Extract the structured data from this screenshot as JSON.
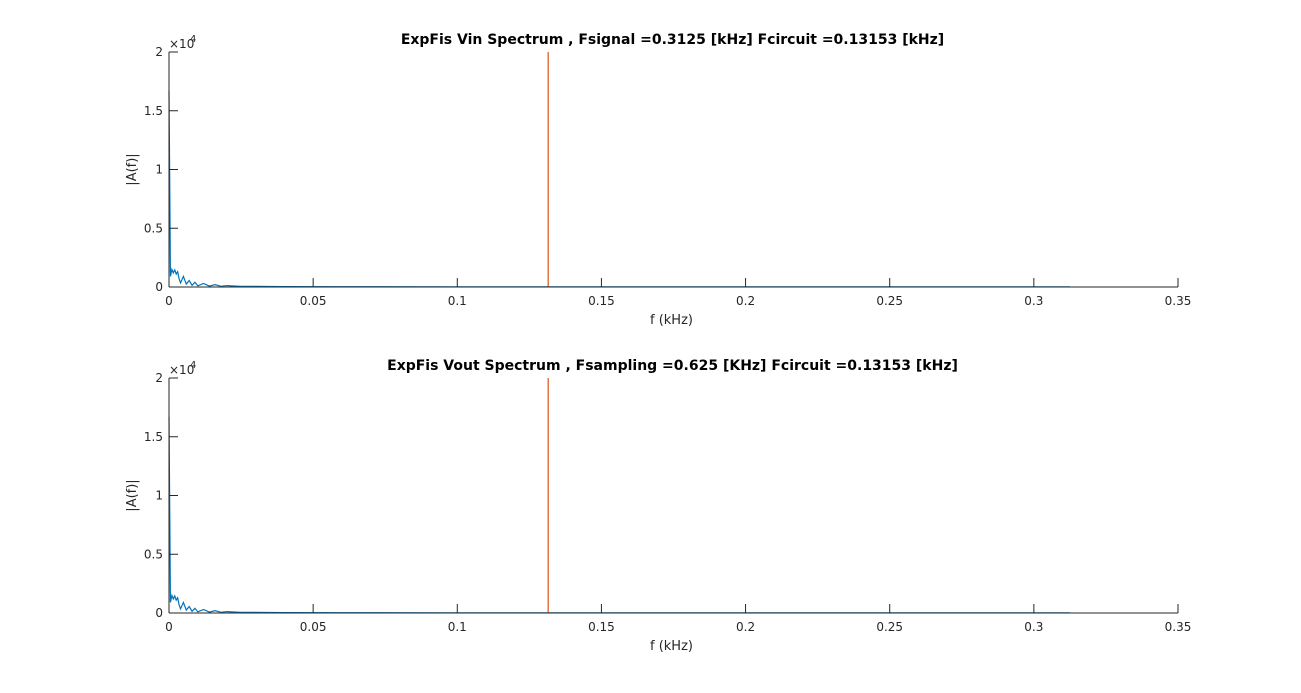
{
  "chart_data": [
    {
      "type": "line",
      "title": "ExpFis Vin Spectrum , Fsignal =0.3125 [kHz] Fcircuit =0.13153 [kHz]",
      "xlabel": "f (kHz)",
      "ylabel": "|A(f)|",
      "xlim": [
        0,
        0.35
      ],
      "ylim": [
        0,
        20000
      ],
      "x_ticks": [
        0,
        0.05,
        0.1,
        0.15,
        0.2,
        0.25,
        0.3,
        0.35
      ],
      "x_tick_labels": [
        "0",
        "0.05",
        "0.1",
        "0.15",
        "0.2",
        "0.25",
        "0.3",
        "0.35"
      ],
      "y_ticks": [
        0,
        5000,
        10000,
        15000,
        20000
      ],
      "y_tick_labels": [
        "0",
        "0.5",
        "1",
        "1.5",
        "2"
      ],
      "y_exponent_label": "×10",
      "y_exponent_power": "4",
      "grid": false,
      "series": [
        {
          "color": "#0072BD",
          "x": [
            0,
            0.0005,
            0.001,
            0.0015,
            0.002,
            0.0025,
            0.003,
            0.0035,
            0.004,
            0.005,
            0.006,
            0.007,
            0.008,
            0.009,
            0.01,
            0.012,
            0.014,
            0.016,
            0.018,
            0.02,
            0.025,
            0.03,
            0.04,
            0.06,
            0.1,
            0.15,
            0.2,
            0.25,
            0.3,
            0.3125
          ],
          "y": [
            16700,
            900,
            1500,
            1200,
            1450,
            1100,
            1300,
            700,
            350,
            900,
            250,
            550,
            150,
            400,
            100,
            300,
            80,
            200,
            60,
            120,
            50,
            60,
            30,
            20,
            15,
            10,
            10,
            10,
            10,
            10
          ]
        },
        {
          "color": "#D95319",
          "x": [
            0.13153,
            0.13153
          ],
          "y": [
            0,
            20000
          ]
        }
      ]
    },
    {
      "type": "line",
      "title": "ExpFis Vout Spectrum , Fsampling =0.625 [KHz]  Fcircuit =0.13153 [kHz]",
      "xlabel": "f (kHz)",
      "ylabel": "|A(f)|",
      "xlim": [
        0,
        0.35
      ],
      "ylim": [
        0,
        20000
      ],
      "x_ticks": [
        0,
        0.05,
        0.1,
        0.15,
        0.2,
        0.25,
        0.3,
        0.35
      ],
      "x_tick_labels": [
        "0",
        "0.05",
        "0.1",
        "0.15",
        "0.2",
        "0.25",
        "0.3",
        "0.35"
      ],
      "y_ticks": [
        0,
        5000,
        10000,
        15000,
        20000
      ],
      "y_tick_labels": [
        "0",
        "0.5",
        "1",
        "1.5",
        "2"
      ],
      "y_exponent_label": "×10",
      "y_exponent_power": "4",
      "grid": false,
      "series": [
        {
          "color": "#0072BD",
          "x": [
            0,
            0.0005,
            0.001,
            0.0015,
            0.002,
            0.0025,
            0.003,
            0.0035,
            0.004,
            0.005,
            0.006,
            0.007,
            0.008,
            0.009,
            0.01,
            0.012,
            0.014,
            0.016,
            0.018,
            0.02,
            0.025,
            0.03,
            0.04,
            0.06,
            0.1,
            0.15,
            0.2,
            0.25,
            0.3,
            0.3125
          ],
          "y": [
            16700,
            900,
            1500,
            1200,
            1450,
            1100,
            1300,
            700,
            350,
            900,
            250,
            550,
            150,
            400,
            100,
            300,
            80,
            200,
            60,
            120,
            50,
            60,
            30,
            20,
            15,
            10,
            10,
            10,
            10,
            10
          ]
        },
        {
          "color": "#D95319",
          "x": [
            0.13153,
            0.13153
          ],
          "y": [
            0,
            20000
          ]
        }
      ]
    }
  ]
}
